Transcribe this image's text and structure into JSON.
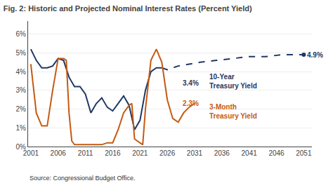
{
  "chart_data": {
    "type": "line",
    "title": "Fig. 2: Historic and Projected Nominal Interest Rates (Percent Yield)",
    "source": "Source: Congressional Budget Office.",
    "xlim": [
      2000.5,
      2052.5
    ],
    "xticks": [
      2001,
      2006,
      2011,
      2016,
      2021,
      2026,
      2031,
      2036,
      2041,
      2046,
      2051
    ],
    "ylim": [
      0,
      0.067
    ],
    "yticks": [
      {
        "value": 0.0,
        "label": "0%"
      },
      {
        "value": 0.01,
        "label": "1%"
      },
      {
        "value": 0.02,
        "label": "2%"
      },
      {
        "value": 0.03,
        "label": "3%"
      },
      {
        "value": 0.04,
        "label": "4%"
      },
      {
        "value": 0.05,
        "label": "5%"
      },
      {
        "value": 0.06,
        "label": "6%"
      }
    ],
    "grid": "y",
    "series": [
      {
        "type": "line",
        "color": "#1F3864",
        "line_style": "solid",
        "x": [
          2001,
          2002,
          2003,
          2004,
          2005,
          2006,
          2007,
          2008,
          2009,
          2010,
          2011,
          2012,
          2013,
          2014,
          2015,
          2016,
          2017,
          2018,
          2019,
          2020,
          2021,
          2022,
          2023,
          2024,
          2025
        ],
        "values": [
          0.052,
          0.046,
          0.042,
          0.042,
          0.043,
          0.047,
          0.046,
          0.037,
          0.032,
          0.032,
          0.028,
          0.018,
          0.023,
          0.026,
          0.021,
          0.019,
          0.023,
          0.027,
          0.022,
          0.009,
          0.014,
          0.03,
          0.04,
          0.042,
          0.042
        ]
      },
      {
        "type": "line",
        "color": "#1F3864",
        "line_style": "dashed",
        "x": [
          2025,
          2026,
          2027,
          2028,
          2030,
          2032,
          2035,
          2038,
          2041,
          2044,
          2047,
          2051
        ],
        "values": [
          0.042,
          0.041,
          0.042,
          0.043,
          0.044,
          0.045,
          0.046,
          0.047,
          0.048,
          0.048,
          0.049,
          0.049
        ]
      },
      {
        "type": "line",
        "color": "#C55A11",
        "line_style": "solid",
        "x": [
          2001,
          2002,
          2003,
          2004,
          2005,
          2006,
          2007,
          2007.5,
          2008,
          2008.5,
          2009,
          2010,
          2011,
          2012,
          2013,
          2014,
          2015,
          2016,
          2017,
          2018,
          2019,
          2019.5,
          2020,
          2020.5,
          2021,
          2021.5,
          2022,
          2023,
          2024,
          2025,
          2026,
          2027,
          2028,
          2029,
          2030,
          2031
        ],
        "values": [
          0.044,
          0.018,
          0.011,
          0.011,
          0.03,
          0.047,
          0.047,
          0.046,
          0.018,
          0.003,
          0.001,
          0.001,
          0.001,
          0.001,
          0.001,
          0.001,
          0.002,
          0.002,
          0.009,
          0.018,
          0.022,
          0.023,
          0.004,
          0.003,
          0.002,
          0.001,
          0.02,
          0.046,
          0.052,
          0.045,
          0.025,
          0.015,
          0.013,
          0.018,
          0.021,
          0.023
        ]
      },
      {
        "type": "scatter",
        "color": "#1F3864",
        "marker": "circle",
        "x": [
          2051
        ],
        "values": [
          0.049
        ]
      }
    ],
    "annotations": [
      {
        "text": "3.4%",
        "x": 2028.5,
        "y": 0.034,
        "color": "#1F3864"
      },
      {
        "text": "2.3%",
        "x": 2028.5,
        "y": 0.023,
        "color": "#C55A11"
      },
      {
        "text": "4.9%",
        "x": 2051.3,
        "y": 0.0487,
        "color": "#1F3864"
      },
      {
        "text": "10-Year\nTreasury Yield",
        "x": 2033.5,
        "y": 0.04,
        "color": "#1F3864"
      },
      {
        "text": "3-Month\nTreasury Yield",
        "x": 2033.5,
        "y": 0.024,
        "color": "#C55A11"
      }
    ]
  }
}
